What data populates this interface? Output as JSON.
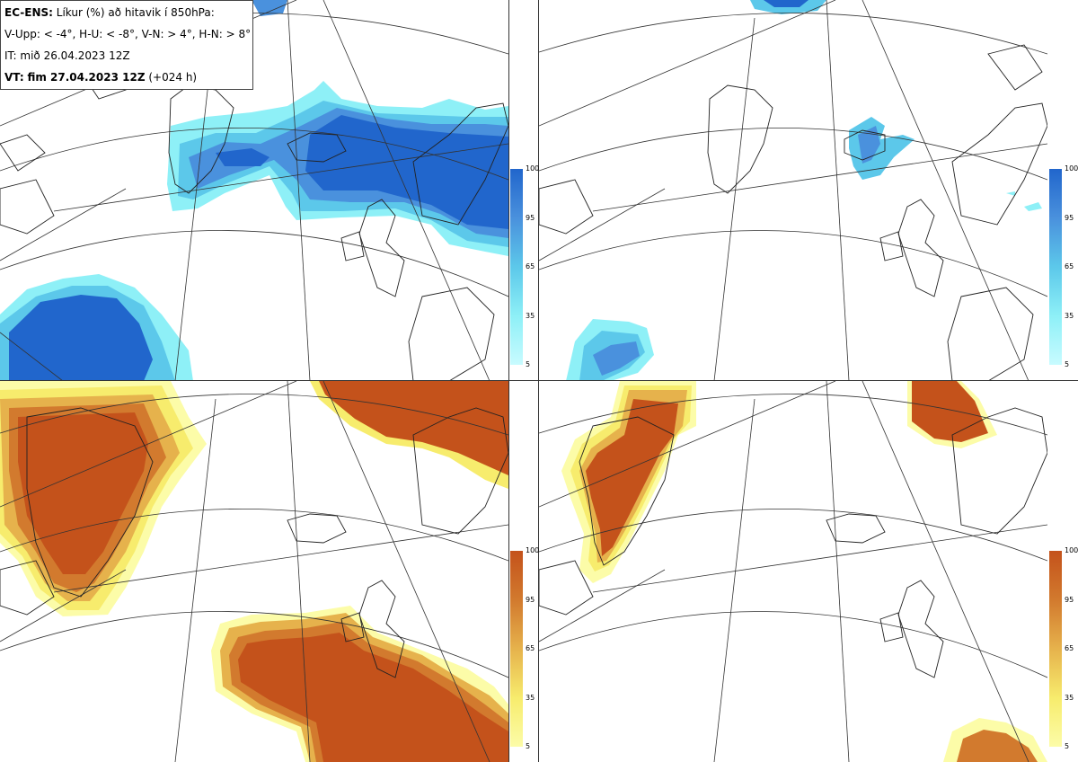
{
  "header": {
    "model": "EC-ENS:",
    "title": "Líkur (%) að hitavik í 850hPa:",
    "categories_line": "V-Upp: < -4°, H-U: < -8°, V-N: > 4°, H-N: > 8°",
    "initial_time": "IT: mið 26.04.2023 12Z",
    "valid_label": "VT:",
    "valid_time": "fim 27.04.2023 12Z",
    "lead_time": "(+024 h)"
  },
  "panels": [
    {
      "id": "top-left",
      "variable": "V-Upp",
      "scale": "blue"
    },
    {
      "id": "top-right",
      "variable": "H-U",
      "scale": "blue"
    },
    {
      "id": "bottom-left",
      "variable": "V-N",
      "scale": "orange"
    },
    {
      "id": "bottom-right",
      "variable": "H-N",
      "scale": "orange"
    }
  ],
  "colorbar": {
    "ticks": [
      "100",
      "95",
      "65",
      "35",
      "5"
    ],
    "blue_colors": [
      "#2166cc",
      "#4a91dd",
      "#5cc8ea",
      "#8ef0f7",
      "#c8fbff"
    ],
    "orange_colors": [
      "#c4521b",
      "#d27a2e",
      "#e6b24c",
      "#f7ec6d",
      "#fcfca8"
    ]
  },
  "colors": {
    "coastline": "#222222",
    "gridline": "#333333",
    "background": "#ffffff"
  }
}
